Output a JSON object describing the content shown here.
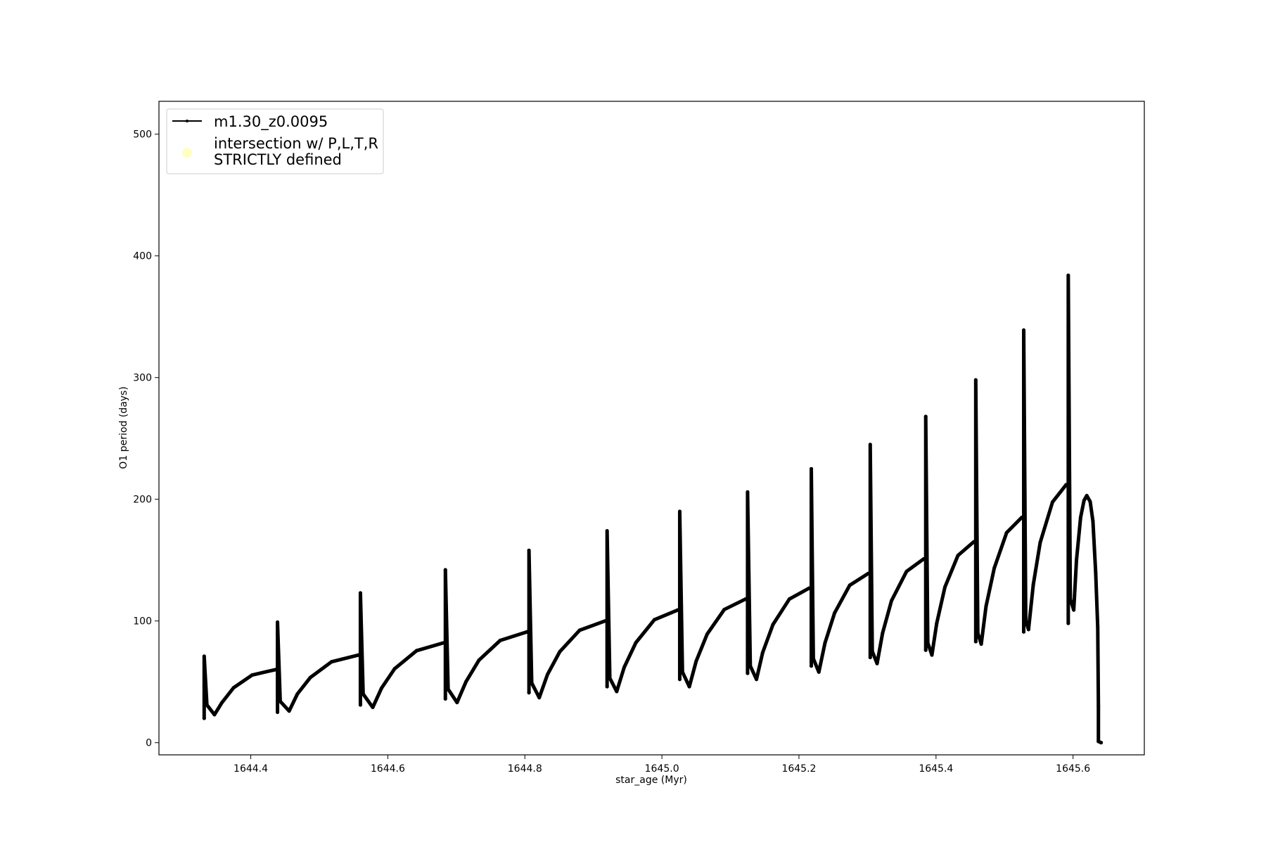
{
  "chart_data": {
    "type": "line",
    "title": "",
    "xlabel": "star_age (Myr)",
    "ylabel": "O1 period (days)",
    "xlim": [
      1644.266,
      1645.704
    ],
    "ylim": [
      -10,
      527
    ],
    "xticks": [
      1644.4,
      1644.6,
      1644.8,
      1645.0,
      1645.2,
      1645.4,
      1645.6
    ],
    "xtick_labels": [
      "1644.4",
      "1644.6",
      "1644.8",
      "1645.0",
      "1645.2",
      "1645.4",
      "1645.6"
    ],
    "yticks": [
      0,
      100,
      200,
      300,
      400,
      500
    ],
    "ytick_labels": [
      "0",
      "100",
      "200",
      "300",
      "400",
      "500"
    ],
    "grid": false,
    "legend_placement": "upper-left",
    "legend": [
      {
        "label": "m1.30_z0.0095",
        "marker": "line-dot",
        "color": "#000000"
      },
      {
        "label_lines": [
          "intersection w/ P,L,T,R",
          "STRICTLY defined"
        ],
        "marker": "circle",
        "color": "#ffffc0"
      }
    ],
    "series": [
      {
        "name": "m1.30_z0.0095",
        "color": "#000000",
        "points": [
          [
            1644.332,
            46
          ],
          [
            1644.332,
            20
          ],
          [
            1644.332,
            71
          ],
          [
            1644.336,
            31
          ],
          [
            1644.347,
            23
          ],
          [
            1644.358,
            33
          ],
          [
            1644.375,
            45.2
          ],
          [
            1644.402,
            55.6
          ],
          [
            1644.436,
            60
          ],
          [
            1644.439,
            60
          ],
          [
            1644.439,
            25
          ],
          [
            1644.439,
            99
          ],
          [
            1644.443,
            34
          ],
          [
            1644.456,
            26
          ],
          [
            1644.468,
            40
          ],
          [
            1644.487,
            53.6
          ],
          [
            1644.518,
            66.5
          ],
          [
            1644.557,
            72
          ],
          [
            1644.56,
            72
          ],
          [
            1644.56,
            31
          ],
          [
            1644.56,
            123
          ],
          [
            1644.564,
            40
          ],
          [
            1644.578,
            29
          ],
          [
            1644.591,
            45
          ],
          [
            1644.61,
            60.8
          ],
          [
            1644.642,
            75.6
          ],
          [
            1644.681,
            82
          ],
          [
            1644.684,
            82
          ],
          [
            1644.684,
            36
          ],
          [
            1644.684,
            142
          ],
          [
            1644.688,
            44
          ],
          [
            1644.701,
            33
          ],
          [
            1644.714,
            50
          ],
          [
            1644.733,
            67.8
          ],
          [
            1644.764,
            84
          ],
          [
            1644.803,
            91
          ],
          [
            1644.806,
            91
          ],
          [
            1644.806,
            41
          ],
          [
            1644.806,
            158
          ],
          [
            1644.81,
            49
          ],
          [
            1644.821,
            37
          ],
          [
            1644.833,
            56
          ],
          [
            1644.851,
            74.8
          ],
          [
            1644.88,
            92.4
          ],
          [
            1644.917,
            100
          ],
          [
            1644.92,
            100
          ],
          [
            1644.92,
            46
          ],
          [
            1644.92,
            174
          ],
          [
            1644.924,
            53
          ],
          [
            1644.934,
            42
          ],
          [
            1644.945,
            62
          ],
          [
            1644.962,
            82.2
          ],
          [
            1644.989,
            101
          ],
          [
            1645.023,
            109
          ],
          [
            1645.026,
            109
          ],
          [
            1645.026,
            52
          ],
          [
            1645.026,
            190
          ],
          [
            1645.03,
            58
          ],
          [
            1645.04,
            46
          ],
          [
            1645.05,
            67
          ],
          [
            1645.066,
            89.2
          ],
          [
            1645.091,
            109.4
          ],
          [
            1645.122,
            118
          ],
          [
            1645.125,
            118
          ],
          [
            1645.125,
            57
          ],
          [
            1645.125,
            206
          ],
          [
            1645.129,
            63
          ],
          [
            1645.138,
            52
          ],
          [
            1645.147,
            74
          ],
          [
            1645.162,
            97
          ],
          [
            1645.186,
            118
          ],
          [
            1645.215,
            127
          ],
          [
            1645.218,
            127
          ],
          [
            1645.218,
            63
          ],
          [
            1645.218,
            225
          ],
          [
            1645.221,
            69
          ],
          [
            1645.229,
            58
          ],
          [
            1645.238,
            82
          ],
          [
            1645.252,
            106.6
          ],
          [
            1645.274,
            129.3
          ],
          [
            1645.301,
            139
          ],
          [
            1645.304,
            139
          ],
          [
            1645.304,
            70
          ],
          [
            1645.304,
            245
          ],
          [
            1645.307,
            75
          ],
          [
            1645.314,
            65
          ],
          [
            1645.322,
            90
          ],
          [
            1645.335,
            116.6
          ],
          [
            1645.357,
            140.7
          ],
          [
            1645.382,
            151
          ],
          [
            1645.385,
            151
          ],
          [
            1645.385,
            76
          ],
          [
            1645.385,
            268
          ],
          [
            1645.388,
            82
          ],
          [
            1645.394,
            72
          ],
          [
            1645.401,
            98
          ],
          [
            1645.413,
            127.8
          ],
          [
            1645.432,
            153.8
          ],
          [
            1645.455,
            165
          ],
          [
            1645.458,
            165
          ],
          [
            1645.458,
            83
          ],
          [
            1645.458,
            298
          ],
          [
            1645.461,
            90
          ],
          [
            1645.466,
            81
          ],
          [
            1645.473,
            112
          ],
          [
            1645.485,
            143.4
          ],
          [
            1645.503,
            172.5
          ],
          [
            1645.525,
            185
          ],
          [
            1645.528,
            185
          ],
          [
            1645.528,
            91
          ],
          [
            1645.528,
            339
          ],
          [
            1645.531,
            100
          ],
          [
            1645.535,
            93
          ],
          [
            1645.542,
            130
          ],
          [
            1645.552,
            164.4
          ],
          [
            1645.57,
            197.7
          ],
          [
            1645.59,
            212
          ],
          [
            1645.593,
            212
          ],
          [
            1645.593,
            98
          ],
          [
            1645.593,
            384
          ],
          [
            1645.596,
            118
          ],
          [
            1645.601,
            109
          ],
          [
            1645.605,
            150
          ],
          [
            1645.611,
            185
          ],
          [
            1645.616,
            199
          ],
          [
            1645.62,
            203
          ],
          [
            1645.625,
            198
          ],
          [
            1645.629,
            182
          ],
          [
            1645.633,
            140
          ],
          [
            1645.636,
            95
          ],
          [
            1645.637,
            30
          ],
          [
            1645.637,
            1
          ],
          [
            1645.641,
            0
          ]
        ]
      }
    ]
  }
}
